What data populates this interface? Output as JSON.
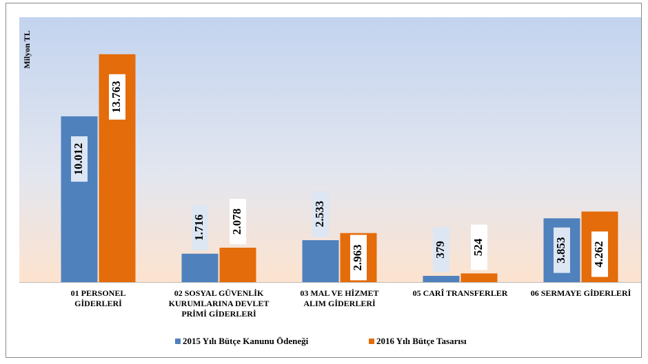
{
  "chart_data": {
    "type": "bar",
    "y_label": "Milyon TL",
    "categories": [
      "01 PERSONEL\nGİDERLERİ",
      "02 SOSYAL GÜVENLİK\nKURUMLARINA DEVLET\nPRİMİ GİDERLERİ",
      "03 MAL VE HİZMET\nALIM GİDERLERİ",
      "05 CARÎ TRANSFERLER",
      "06 SERMAYE GİDERLERİ"
    ],
    "series": [
      {
        "name": "2015 Yılı Bütçe Kanunu Ödeneği",
        "color": "#4f81bd",
        "values": [
          10012,
          1716,
          2533,
          379,
          3853
        ],
        "value_labels": [
          "10.012",
          "1.716",
          "2.533",
          "379",
          "3.853"
        ]
      },
      {
        "name": "2016 Yılı Bütçe Tasarısı",
        "color": "#e46c0a",
        "values": [
          13763,
          2078,
          2963,
          524,
          4262
        ],
        "value_labels": [
          "13.763",
          "2.078",
          "2.963",
          "524",
          "4.262"
        ]
      }
    ],
    "ylim": [
      0,
      16000
    ],
    "legend": "bottom"
  }
}
